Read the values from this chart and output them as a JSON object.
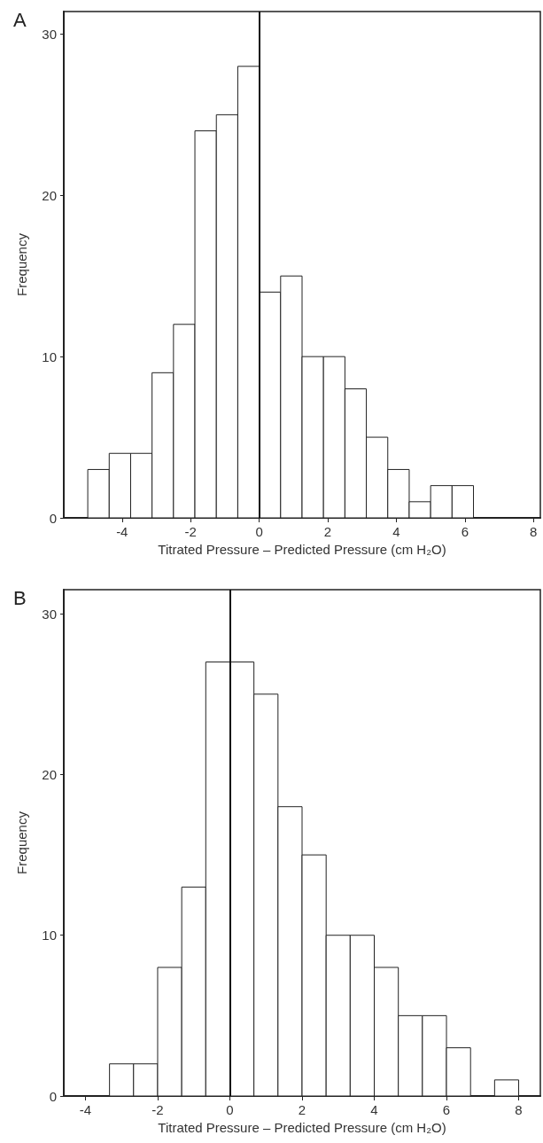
{
  "chart_data": [
    {
      "type": "histogram",
      "title": "A",
      "xlabel": "Titrated Pressure – Predicted Pressure (cm H₂O)",
      "ylabel": "Frequency",
      "bins": [
        -5,
        -4.375,
        -3.75,
        -3.125,
        -2.5,
        -1.875,
        -1.25,
        -0.625,
        0,
        0.625,
        1.25,
        1.875,
        2.5,
        3.125,
        3.75,
        4.375,
        5,
        5.625,
        6.25
      ],
      "values": [
        3,
        4,
        4,
        9,
        12,
        24,
        25,
        28,
        14,
        15,
        10,
        10,
        8,
        5,
        3,
        1,
        2,
        2
      ],
      "color": "#ffffff",
      "xlim": [
        -5.7,
        8.2
      ],
      "xticks": [
        -4,
        -2,
        0,
        2,
        4,
        6,
        8
      ],
      "ylim": [
        0,
        31.4
      ],
      "yticks": [
        0,
        10,
        20,
        30
      ],
      "grid": false,
      "ref_lines": [
        {
          "axis": "x",
          "value": 0,
          "label": null,
          "color": "#111111"
        }
      ]
    },
    {
      "type": "histogram",
      "title": "B",
      "xlabel": "Titrated Pressure – Predicted Pressure (cm H₂O)",
      "ylabel": "Frequency",
      "bins": [
        -3.333,
        -2.667,
        -2,
        -1.333,
        -0.667,
        0,
        0.667,
        1.333,
        2,
        2.667,
        3.333,
        4,
        4.667,
        5.333,
        6,
        6.667,
        7.333,
        8
      ],
      "values": [
        2,
        2,
        8,
        13,
        27,
        27,
        25,
        18,
        15,
        10,
        10,
        8,
        5,
        5,
        3,
        0,
        1
      ],
      "color": "#ffffff",
      "xlim": [
        -4.6,
        8.6
      ],
      "xticks": [
        -4,
        -2,
        0,
        2,
        4,
        6,
        8
      ],
      "ylim": [
        0,
        31.5
      ],
      "yticks": [
        0,
        10,
        20,
        30
      ],
      "grid": false,
      "ref_lines": [
        {
          "axis": "x",
          "value": 0,
          "label": null,
          "color": "#111111"
        }
      ]
    }
  ]
}
